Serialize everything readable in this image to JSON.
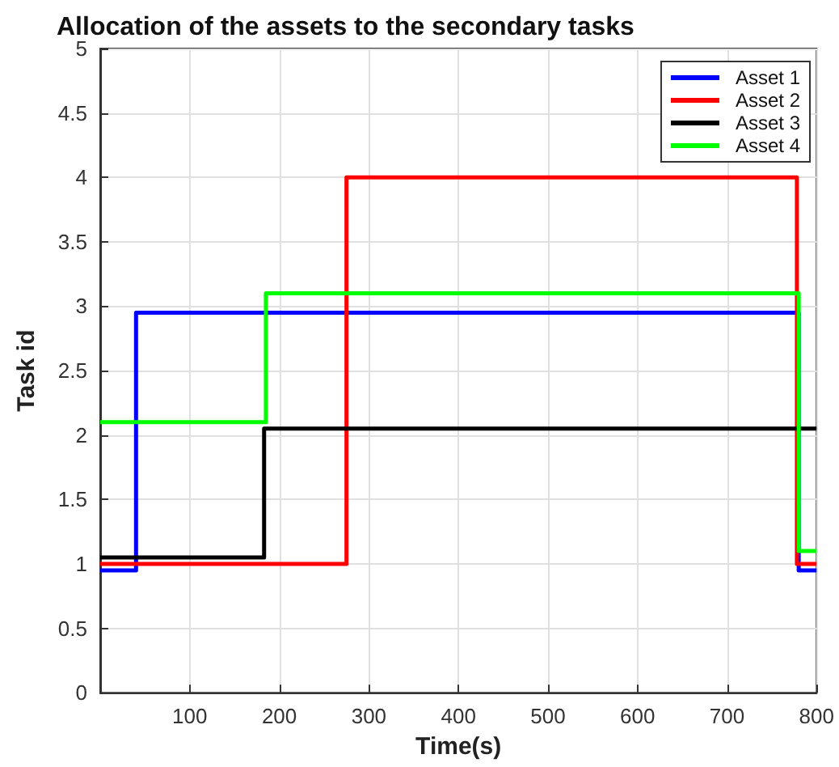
{
  "chart_data": {
    "type": "step",
    "title": "Allocation of the assets to the secondary tasks",
    "xlabel": "Time(s)",
    "ylabel": "Task id",
    "series": [
      {
        "name": "Asset 1",
        "color": "#0000ff",
        "x": [
          0,
          40,
          780,
          800
        ],
        "values": [
          0.95,
          2.95,
          0.95,
          0.95
        ]
      },
      {
        "name": "Asset 2",
        "color": "#ff0000",
        "x": [
          0,
          275,
          778,
          800
        ],
        "values": [
          1.0,
          4.0,
          1.0,
          1.0
        ]
      },
      {
        "name": "Asset 3",
        "color": "#000000",
        "x": [
          0,
          183,
          800
        ],
        "values": [
          1.05,
          2.05,
          2.05
        ]
      },
      {
        "name": "Asset 4",
        "color": "#00ff00",
        "x": [
          0,
          185,
          780,
          800
        ],
        "values": [
          2.1,
          3.1,
          1.1,
          1.1
        ]
      }
    ],
    "xlim": [
      0,
      800
    ],
    "xticks": [
      100,
      200,
      300,
      400,
      500,
      600,
      700,
      800
    ],
    "ylim": [
      0,
      5
    ],
    "yticks": [
      0,
      0.5,
      1,
      1.5,
      2,
      2.5,
      3,
      3.5,
      4,
      4.5,
      5
    ],
    "grid": true,
    "legend": "top right",
    "line_style": "solid",
    "marker": "none"
  }
}
